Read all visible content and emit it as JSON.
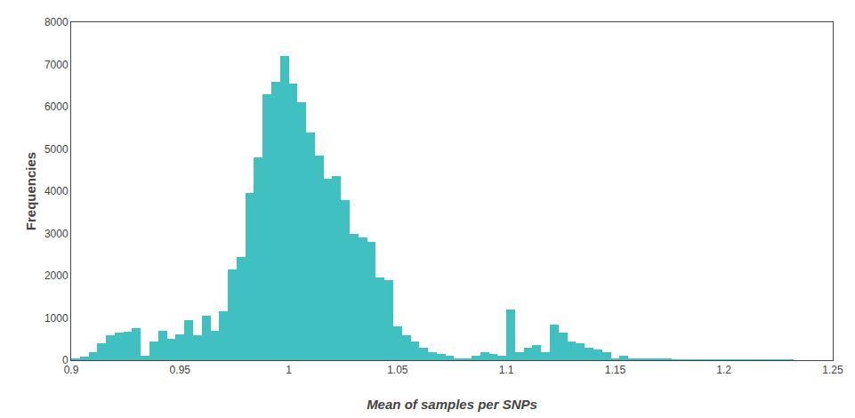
{
  "chart_data": {
    "type": "bar",
    "xlabel": "Mean of samples per SNPs",
    "ylabel": "Frequencies",
    "x": [
      0.902,
      0.906,
      0.91,
      0.914,
      0.918,
      0.922,
      0.926,
      0.93,
      0.934,
      0.938,
      0.942,
      0.946,
      0.95,
      0.954,
      0.958,
      0.962,
      0.966,
      0.97,
      0.974,
      0.978,
      0.982,
      0.986,
      0.99,
      0.994,
      0.998,
      1.002,
      1.006,
      1.01,
      1.014,
      1.018,
      1.022,
      1.026,
      1.03,
      1.034,
      1.038,
      1.042,
      1.046,
      1.05,
      1.054,
      1.058,
      1.062,
      1.066,
      1.07,
      1.074,
      1.078,
      1.082,
      1.086,
      1.09,
      1.094,
      1.098,
      1.102,
      1.106,
      1.11,
      1.114,
      1.118,
      1.122,
      1.126,
      1.13,
      1.134,
      1.138,
      1.142,
      1.146,
      1.15,
      1.154,
      1.158,
      1.162,
      1.166,
      1.17,
      1.174,
      1.178,
      1.182,
      1.186,
      1.19,
      1.194,
      1.198,
      1.202,
      1.206,
      1.21,
      1.214,
      1.218,
      1.222,
      1.226,
      1.23
    ],
    "values": [
      30,
      80,
      200,
      400,
      600,
      650,
      680,
      750,
      100,
      450,
      700,
      500,
      620,
      950,
      600,
      1050,
      700,
      1150,
      2150,
      2450,
      3950,
      4800,
      6300,
      6600,
      7200,
      6550,
      6100,
      5400,
      4850,
      4300,
      4350,
      3800,
      3000,
      2900,
      2800,
      1950,
      1900,
      800,
      600,
      450,
      300,
      200,
      150,
      100,
      50,
      50,
      100,
      200,
      150,
      100,
      1200,
      200,
      300,
      350,
      200,
      850,
      650,
      450,
      400,
      300,
      250,
      200,
      50,
      100,
      50,
      50,
      50,
      50,
      30,
      20,
      10,
      10,
      5,
      5,
      5,
      5,
      5,
      5,
      5,
      5,
      5,
      5,
      5
    ],
    "color": "#40c0c0",
    "xlim": [
      0.9,
      1.25
    ],
    "ylim": [
      0,
      8000
    ],
    "xticks": [
      0.9,
      0.95,
      1,
      1.05,
      1.1,
      1.15,
      1.2,
      1.25
    ],
    "yticks": [
      0,
      1000,
      2000,
      3000,
      4000,
      5000,
      6000,
      7000,
      8000
    ],
    "grid": false
  }
}
